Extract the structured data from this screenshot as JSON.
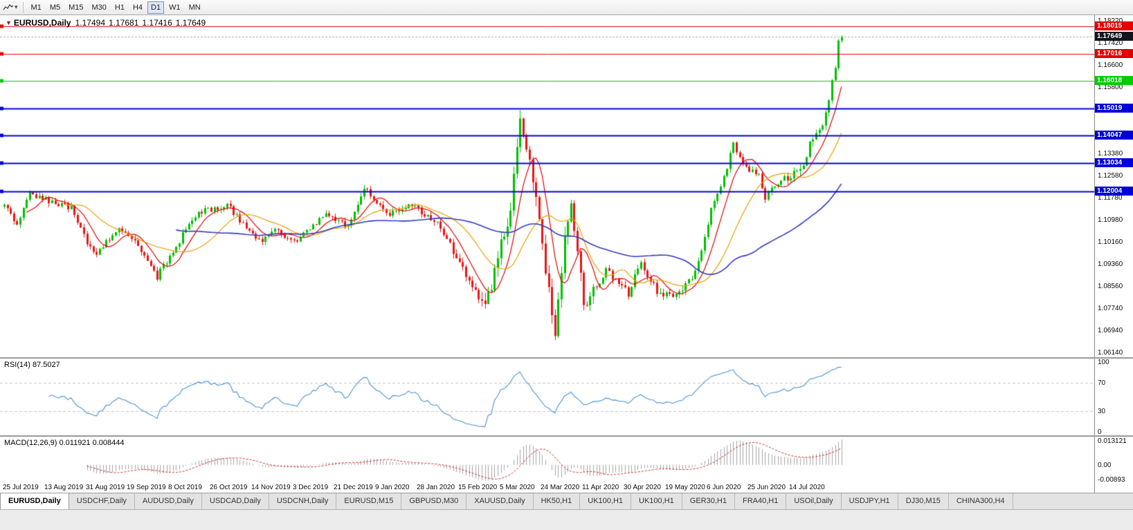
{
  "toolbar": {
    "timeframes": [
      "M1",
      "M5",
      "M15",
      "M30",
      "H1",
      "H4",
      "D1",
      "W1",
      "MN"
    ],
    "active_timeframe": "D1",
    "dropdown_icon": "▾"
  },
  "main_chart": {
    "title": {
      "direction_icon": "▼",
      "symbol": "EURUSD,Daily",
      "open": "1.17494",
      "high": "1.17681",
      "low": "1.17416",
      "close": "1.17649"
    },
    "price_min": 1.0596,
    "price_max": 1.1842,
    "y_ticks": [
      "1.18220",
      "1.17420",
      "1.16600",
      "1.15800",
      "1.13380",
      "1.12580",
      "1.11780",
      "1.10980",
      "1.10160",
      "1.09360",
      "1.08560",
      "1.07740",
      "1.06940",
      "1.06140"
    ],
    "hlines": [
      {
        "price": 1.18015,
        "label": "1.18015",
        "color": "#e40000",
        "width": 1
      },
      {
        "price": 1.17016,
        "label": "1.17016",
        "color": "#e40000",
        "width": 1
      },
      {
        "price": 1.16018,
        "label": "1.16018",
        "color": "#00cc00",
        "width": 1
      },
      {
        "price": 1.15019,
        "label": "1.15019",
        "color": "#0000d8",
        "width": 2
      },
      {
        "price": 1.14047,
        "label": "1.14047",
        "color": "#0000d8",
        "width": 2
      },
      {
        "price": 1.13034,
        "label": "1.13034",
        "color": "#0000d8",
        "width": 2
      },
      {
        "price": 1.12004,
        "label": "1.12004",
        "color": "#0000d8",
        "width": 2
      }
    ],
    "bid": {
      "price": 1.17649,
      "label": "1.17649",
      "badge_color": "#14141e"
    }
  },
  "rsi": {
    "title": "RSI(14)",
    "value": "87.5027",
    "color": "#4a90d8",
    "levels": [
      {
        "value": 100,
        "label": "100",
        "dashed": false
      },
      {
        "value": 70,
        "label": "70",
        "dashed": true
      },
      {
        "value": 30,
        "label": "30",
        "dashed": true
      },
      {
        "value": 0,
        "label": "0",
        "dashed": false
      }
    ]
  },
  "macd": {
    "title": "MACD(12,26,9)",
    "value_main": "0.011921",
    "value_signal": "0.008444",
    "bar_color": "#a4a4a4",
    "signal_color": "#d03030",
    "axis": {
      "top": "0.013121",
      "zero": "0.00",
      "bottom": "-0.00893"
    }
  },
  "x_labels": [
    "25 Jul 2019",
    "13 Aug 2019",
    "31 Aug 2019",
    "19 Sep 2019",
    "8 Oct 2019",
    "26 Oct 2019",
    "14 Nov 2019",
    "3 Dec 2019",
    "21 Dec 2019",
    "9 Jan 2020",
    "28 Jan 2020",
    "15 Feb 2020",
    "5 Mar 2020",
    "24 Mar 2020",
    "11 Apr 2020",
    "30 Apr 2020",
    "19 May 2020",
    "6 Jun 2020",
    "25 Jun 2020",
    "14 Jul 2020"
  ],
  "tabs": {
    "items": [
      "EURUSD,Daily",
      "USDCHF,Daily",
      "AUDUSD,Daily",
      "USDCAD,Daily",
      "USDCNH,Daily",
      "EURUSD,M15",
      "GBPUSD,M30",
      "XAUUSD,Daily",
      "HK50,H1",
      "UK100,H1",
      "UK100,H1",
      "GER30,H1",
      "FRA40,H1",
      "USOil,Daily",
      "USDJPY,H1",
      "DJ30,M15",
      "CHINA300,H4"
    ],
    "active_index": 0
  },
  "chart_data": {
    "type": "candlestick",
    "symbol": "EURUSD",
    "timeframe": "Daily",
    "x_range": [
      "25 Jul 2019",
      "28 Jul 2020"
    ],
    "y_range": [
      1.0596,
      1.1842
    ],
    "candle_count": 264,
    "last_candle": {
      "open": 1.17494,
      "high": 1.17681,
      "low": 1.17416,
      "close": 1.17649
    },
    "up_color": "#00be00",
    "down_color": "#e81414",
    "price_path": [
      [
        0,
        1.1145
      ],
      [
        4,
        1.1085
      ],
      [
        8,
        1.1195
      ],
      [
        13,
        1.117
      ],
      [
        21,
        1.114
      ],
      [
        27,
        1.099
      ],
      [
        29,
        1.097
      ],
      [
        36,
        1.107
      ],
      [
        41,
        1.1015
      ],
      [
        47,
        1.0905
      ],
      [
        48,
        1.089
      ],
      [
        56,
        1.104
      ],
      [
        62,
        1.113
      ],
      [
        70,
        1.115
      ],
      [
        80,
        1.102
      ],
      [
        85,
        1.106
      ],
      [
        91,
        1.1015
      ],
      [
        101,
        1.112
      ],
      [
        108,
        1.1075
      ],
      [
        113,
        1.121
      ],
      [
        121,
        1.112
      ],
      [
        128,
        1.115
      ],
      [
        136,
        1.109
      ],
      [
        143,
        1.0945
      ],
      [
        150,
        1.079
      ],
      [
        153,
        1.0845
      ],
      [
        156,
        1.1025
      ],
      [
        159,
        1.1135
      ],
      [
        162,
        1.145
      ],
      [
        164,
        1.135
      ],
      [
        167,
        1.118
      ],
      [
        170,
        1.092
      ],
      [
        173,
        1.066
      ],
      [
        176,
        1.105
      ],
      [
        178,
        1.114
      ],
      [
        182,
        1.079
      ],
      [
        186,
        1.086
      ],
      [
        189,
        1.091
      ],
      [
        193,
        1.0875
      ],
      [
        196,
        1.082
      ],
      [
        200,
        1.095
      ],
      [
        205,
        1.083
      ],
      [
        210,
        1.081
      ],
      [
        217,
        1.09
      ],
      [
        222,
        1.113
      ],
      [
        226,
        1.125
      ],
      [
        229,
        1.137
      ],
      [
        233,
        1.129
      ],
      [
        237,
        1.1255
      ],
      [
        239,
        1.118
      ],
      [
        243,
        1.1235
      ],
      [
        247,
        1.1255
      ],
      [
        251,
        1.13
      ],
      [
        254,
        1.14
      ],
      [
        257,
        1.145
      ],
      [
        259,
        1.153
      ],
      [
        261,
        1.165
      ],
      [
        263,
        1.17649
      ]
    ],
    "moving_averages": [
      {
        "period": 8,
        "color": "#e00000"
      },
      {
        "period": 20,
        "color": "#e8a000"
      },
      {
        "period": 55,
        "color": "#3038c0"
      }
    ],
    "rsi": {
      "period": 14,
      "last": 87.5027
    },
    "macd": {
      "fast": 12,
      "slow": 26,
      "signal": 9,
      "last": [
        0.011921,
        0.008444
      ]
    }
  }
}
